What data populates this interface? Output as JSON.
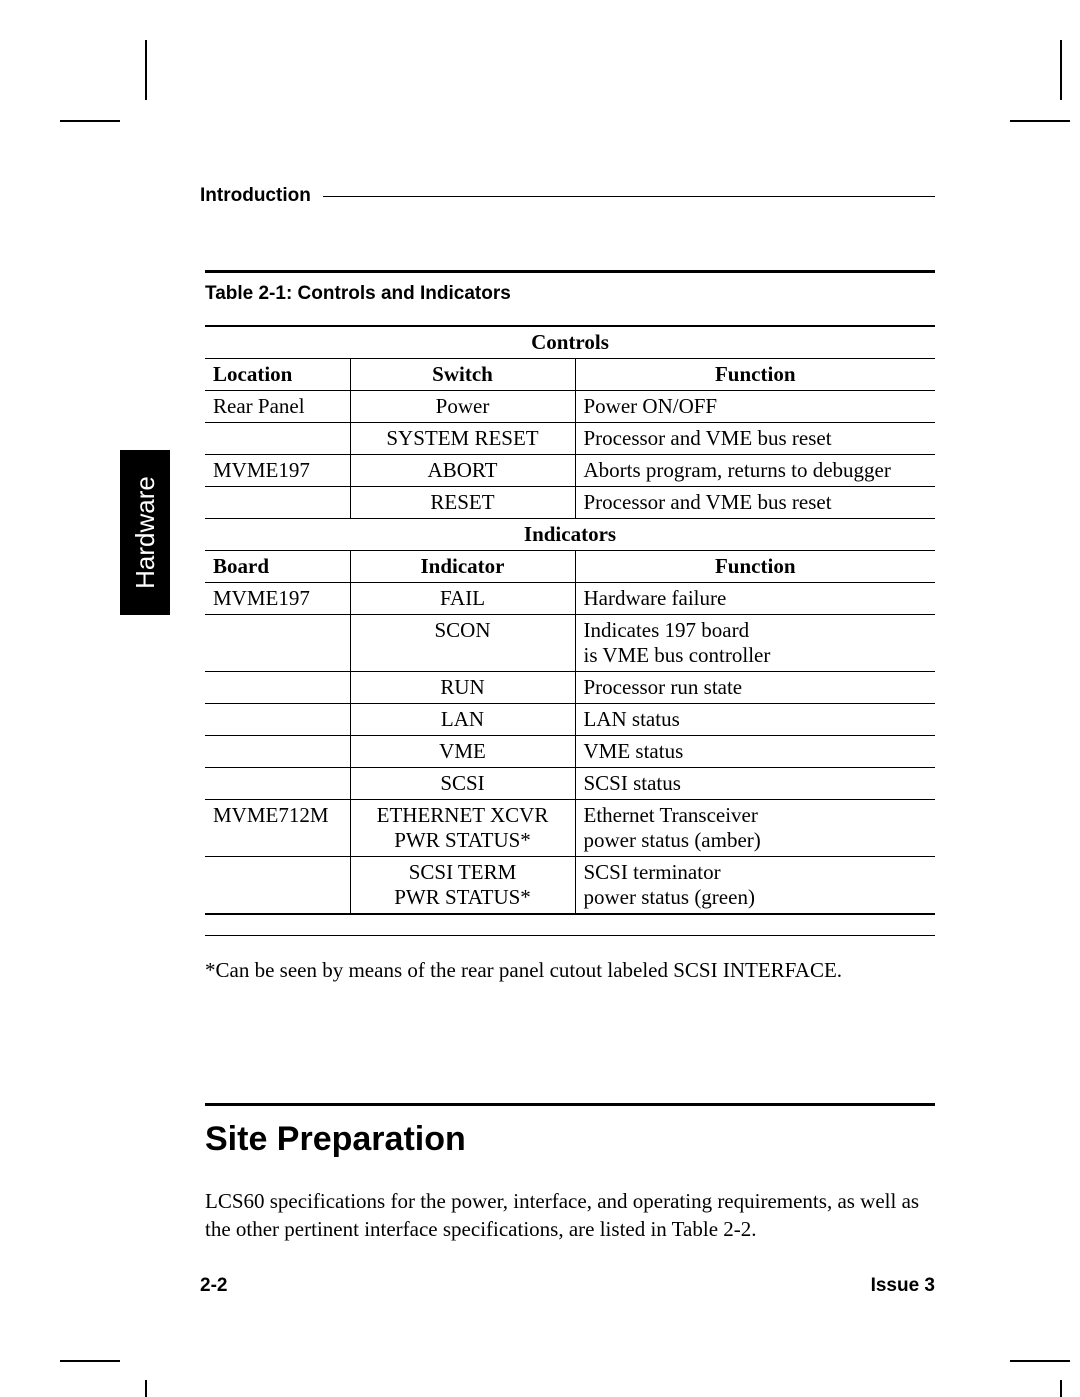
{
  "header": {
    "section_label": "Introduction"
  },
  "side_tab": {
    "label": "Hardware"
  },
  "table": {
    "caption": "Table 2-1:  Controls and Indicators",
    "controls_header": "Controls",
    "controls_cols": {
      "c1": "Location",
      "c2": "Switch",
      "c3": "Function"
    },
    "controls_rows": [
      {
        "c1": "Rear Panel",
        "c2": "Power",
        "c3": "Power ON/OFF"
      },
      {
        "c1": "",
        "c2": "SYSTEM RESET",
        "c3": "Processor and VME bus reset"
      },
      {
        "c1": "MVME197",
        "c2": "ABORT",
        "c3": "Aborts program, returns to debugger"
      },
      {
        "c1": "",
        "c2": "RESET",
        "c3": "Processor and VME bus reset"
      }
    ],
    "indicators_header": "Indicators",
    "indicators_cols": {
      "c1": "Board",
      "c2": "Indicator",
      "c3": "Function"
    },
    "indicators_rows": [
      {
        "c1": "MVME197",
        "c2": "FAIL",
        "c3": "Hardware failure"
      },
      {
        "c1": "",
        "c2": "SCON",
        "c3": "Indicates 197 board\nis VME bus controller"
      },
      {
        "c1": "",
        "c2": "RUN",
        "c3": "Processor run state"
      },
      {
        "c1": "",
        "c2": "LAN",
        "c3": "LAN status"
      },
      {
        "c1": "",
        "c2": "VME",
        "c3": "VME status"
      },
      {
        "c1": "",
        "c2": "SCSI",
        "c3": "SCSI status"
      },
      {
        "c1": "MVME712M",
        "c2": "ETHERNET XCVR\nPWR STATUS*",
        "c3": "Ethernet Transceiver\npower status (amber)"
      },
      {
        "c1": "",
        "c2": "SCSI TERM\nPWR STATUS*",
        "c3": "SCSI terminator\npower status (green)"
      }
    ]
  },
  "footnote": "*Can be seen by means of the rear panel cutout labeled SCSI INTERFACE.",
  "section": {
    "title": "Site Preparation",
    "body": "LCS60 specifications for the power, interface, and operating requirements, as well as the other pertinent interface specifications, are listed in Table 2-2."
  },
  "footer": {
    "page": "2-2",
    "issue": "Issue 3"
  }
}
